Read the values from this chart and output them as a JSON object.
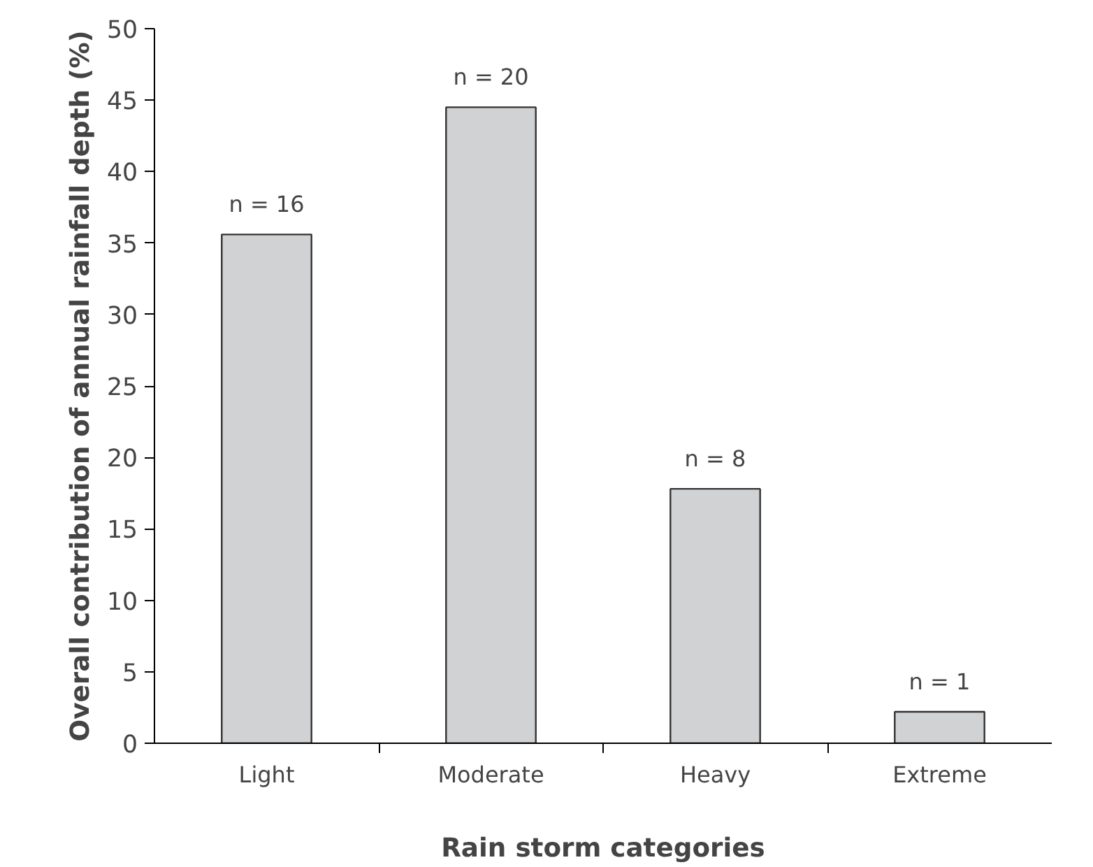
{
  "chart_data": {
    "type": "bar",
    "xlabel": "Rain storm categories",
    "ylabel": "Overall contribution of annual rainfall depth (%)",
    "categories": [
      "Light",
      "Moderate",
      "Heavy",
      "Extreme"
    ],
    "values": [
      35.6,
      44.5,
      17.8,
      2.2
    ],
    "color": "#d1d2d4",
    "ylim": [
      0,
      50
    ],
    "yticks": [
      0,
      5,
      10,
      15,
      20,
      25,
      30,
      35,
      40,
      45,
      50
    ],
    "grid": false,
    "annotations": [
      {
        "text": "n = 16",
        "x": "Light",
        "y": 35.6
      },
      {
        "text": "n = 20",
        "x": "Moderate",
        "y": 44.5
      },
      {
        "text": "n = 8",
        "x": "Heavy",
        "y": 17.8
      },
      {
        "text": "n = 1",
        "x": "Extreme",
        "y": 2.2
      }
    ]
  }
}
